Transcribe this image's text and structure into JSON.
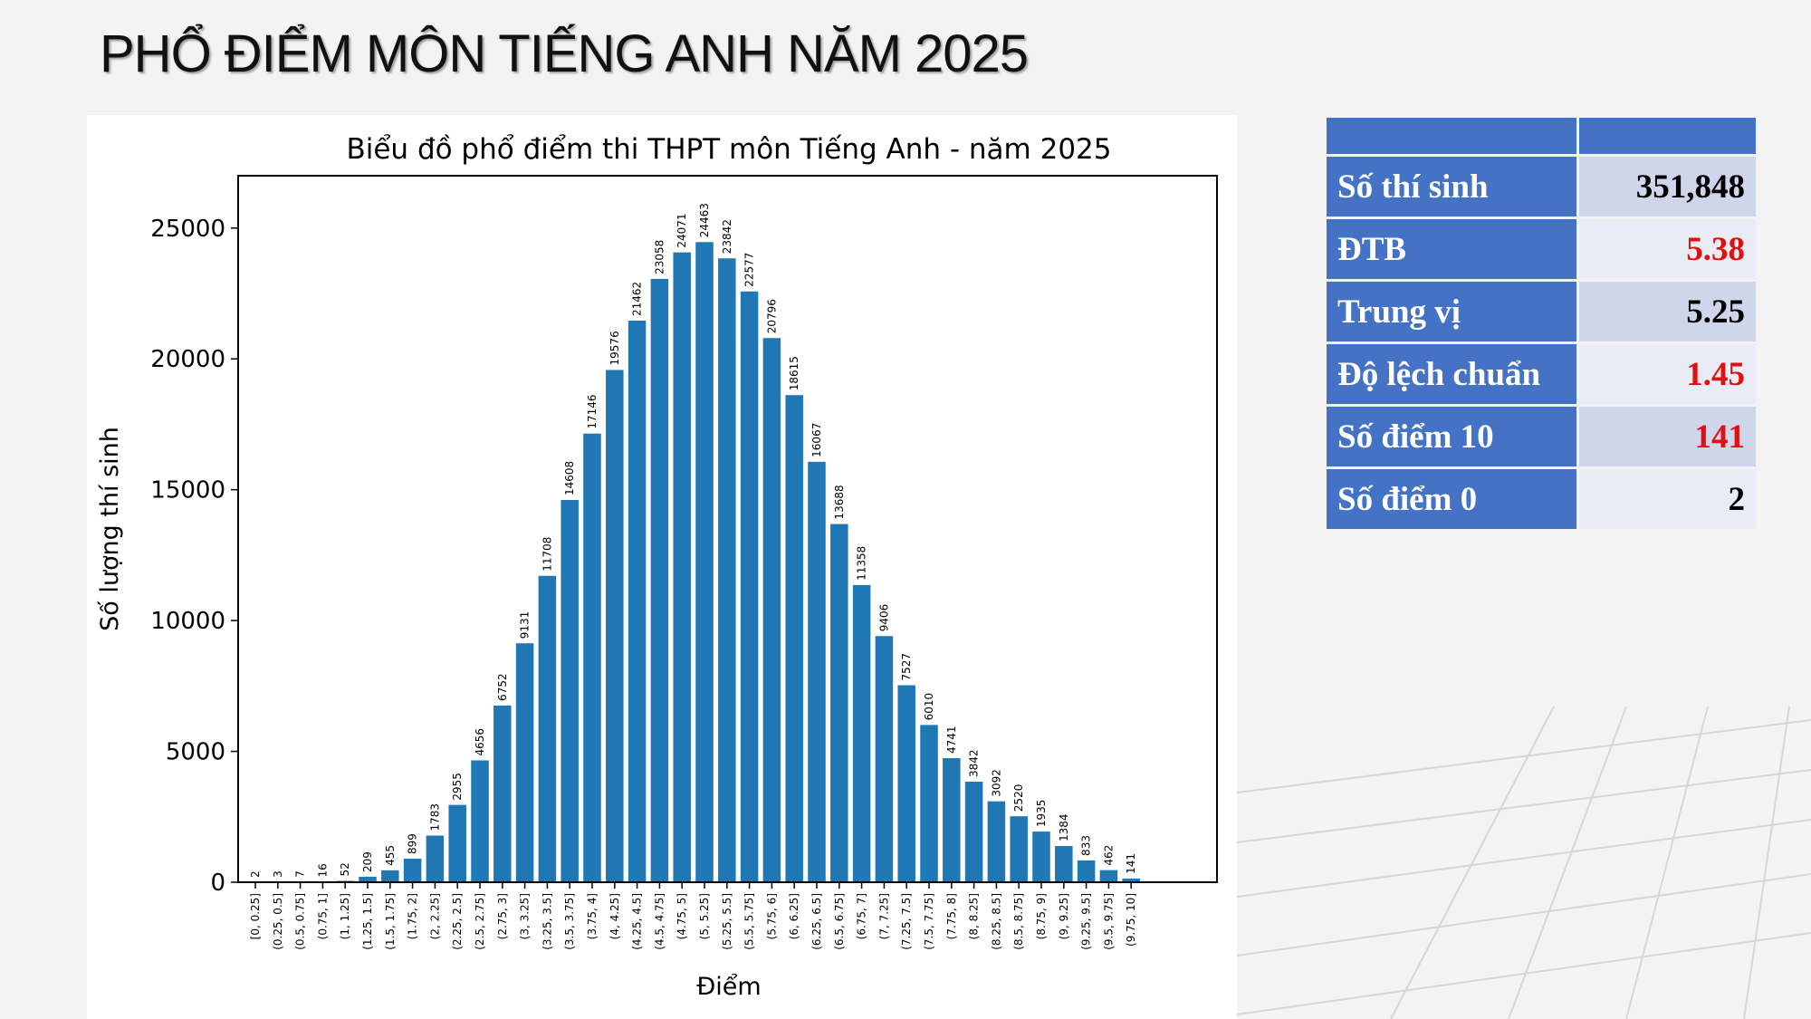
{
  "slide": {
    "title": "PHỔ ĐIỂM MÔN TIẾNG ANH NĂM 2025"
  },
  "colors": {
    "bar": "#1f77b4",
    "table_header": "#4472c4",
    "highlight_value": "#e01010"
  },
  "chart_data": {
    "type": "bar",
    "title": "Biểu đồ phổ điểm thi THPT môn Tiếng Anh - năm 2025",
    "xlabel": "Điểm",
    "ylabel": "Số lượng thí sinh",
    "ylim": [
      0,
      27000
    ],
    "yticks": [
      0,
      5000,
      10000,
      15000,
      20000,
      25000
    ],
    "grid": false,
    "categories": [
      "[0, 0.25]",
      "(0.25, 0.5]",
      "(0.5, 0.75]",
      "(0.75, 1]",
      "(1, 1.25]",
      "(1.25, 1.5]",
      "(1.5, 1.75]",
      "(1.75, 2]",
      "(2, 2.25]",
      "(2.25, 2.5]",
      "(2.5, 2.75]",
      "(2.75, 3]",
      "(3, 3.25]",
      "(3.25, 3.5]",
      "(3.5, 3.75]",
      "(3.75, 4]",
      "(4, 4.25]",
      "(4.25, 4.5]",
      "(4.5, 4.75]",
      "(4.75, 5]",
      "(5, 5.25]",
      "(5.25, 5.5]",
      "(5.5, 5.75]",
      "(5.75, 6]",
      "(6, 6.25]",
      "(6.25, 6.5]",
      "(6.5, 6.75]",
      "(6.75, 7]",
      "(7, 7.25]",
      "(7.25, 7.5]",
      "(7.5, 7.75]",
      "(7.75, 8]",
      "(8, 8.25]",
      "(8.25, 8.5]",
      "(8.5, 8.75]",
      "(8.75, 9]",
      "(9, 9.25]",
      "(9.25, 9.5]",
      "(9.5, 9.75]",
      "(9.75, 10]"
    ],
    "values": [
      2,
      3,
      7,
      16,
      52,
      209,
      455,
      899,
      1783,
      2955,
      4656,
      6752,
      9131,
      11708,
      14608,
      17146,
      19576,
      21462,
      23058,
      24071,
      24463,
      23842,
      22577,
      20796,
      18615,
      16067,
      13688,
      11358,
      9406,
      7527,
      6010,
      4741,
      3842,
      3092,
      2520,
      1935,
      1384,
      833,
      462,
      141
    ]
  },
  "stats": {
    "rows": [
      {
        "label": "Số thí sinh",
        "value": "351,848",
        "highlight": false
      },
      {
        "label": "ĐTB",
        "value": "5.38",
        "highlight": true
      },
      {
        "label": "Trung vị",
        "value": "5.25",
        "highlight": false
      },
      {
        "label": "Độ lệch chuẩn",
        "value": "1.45",
        "highlight": true
      },
      {
        "label": "Số điểm 10",
        "value": "141",
        "highlight": true
      },
      {
        "label": "Số điểm 0",
        "value": "2",
        "highlight": false
      }
    ]
  }
}
